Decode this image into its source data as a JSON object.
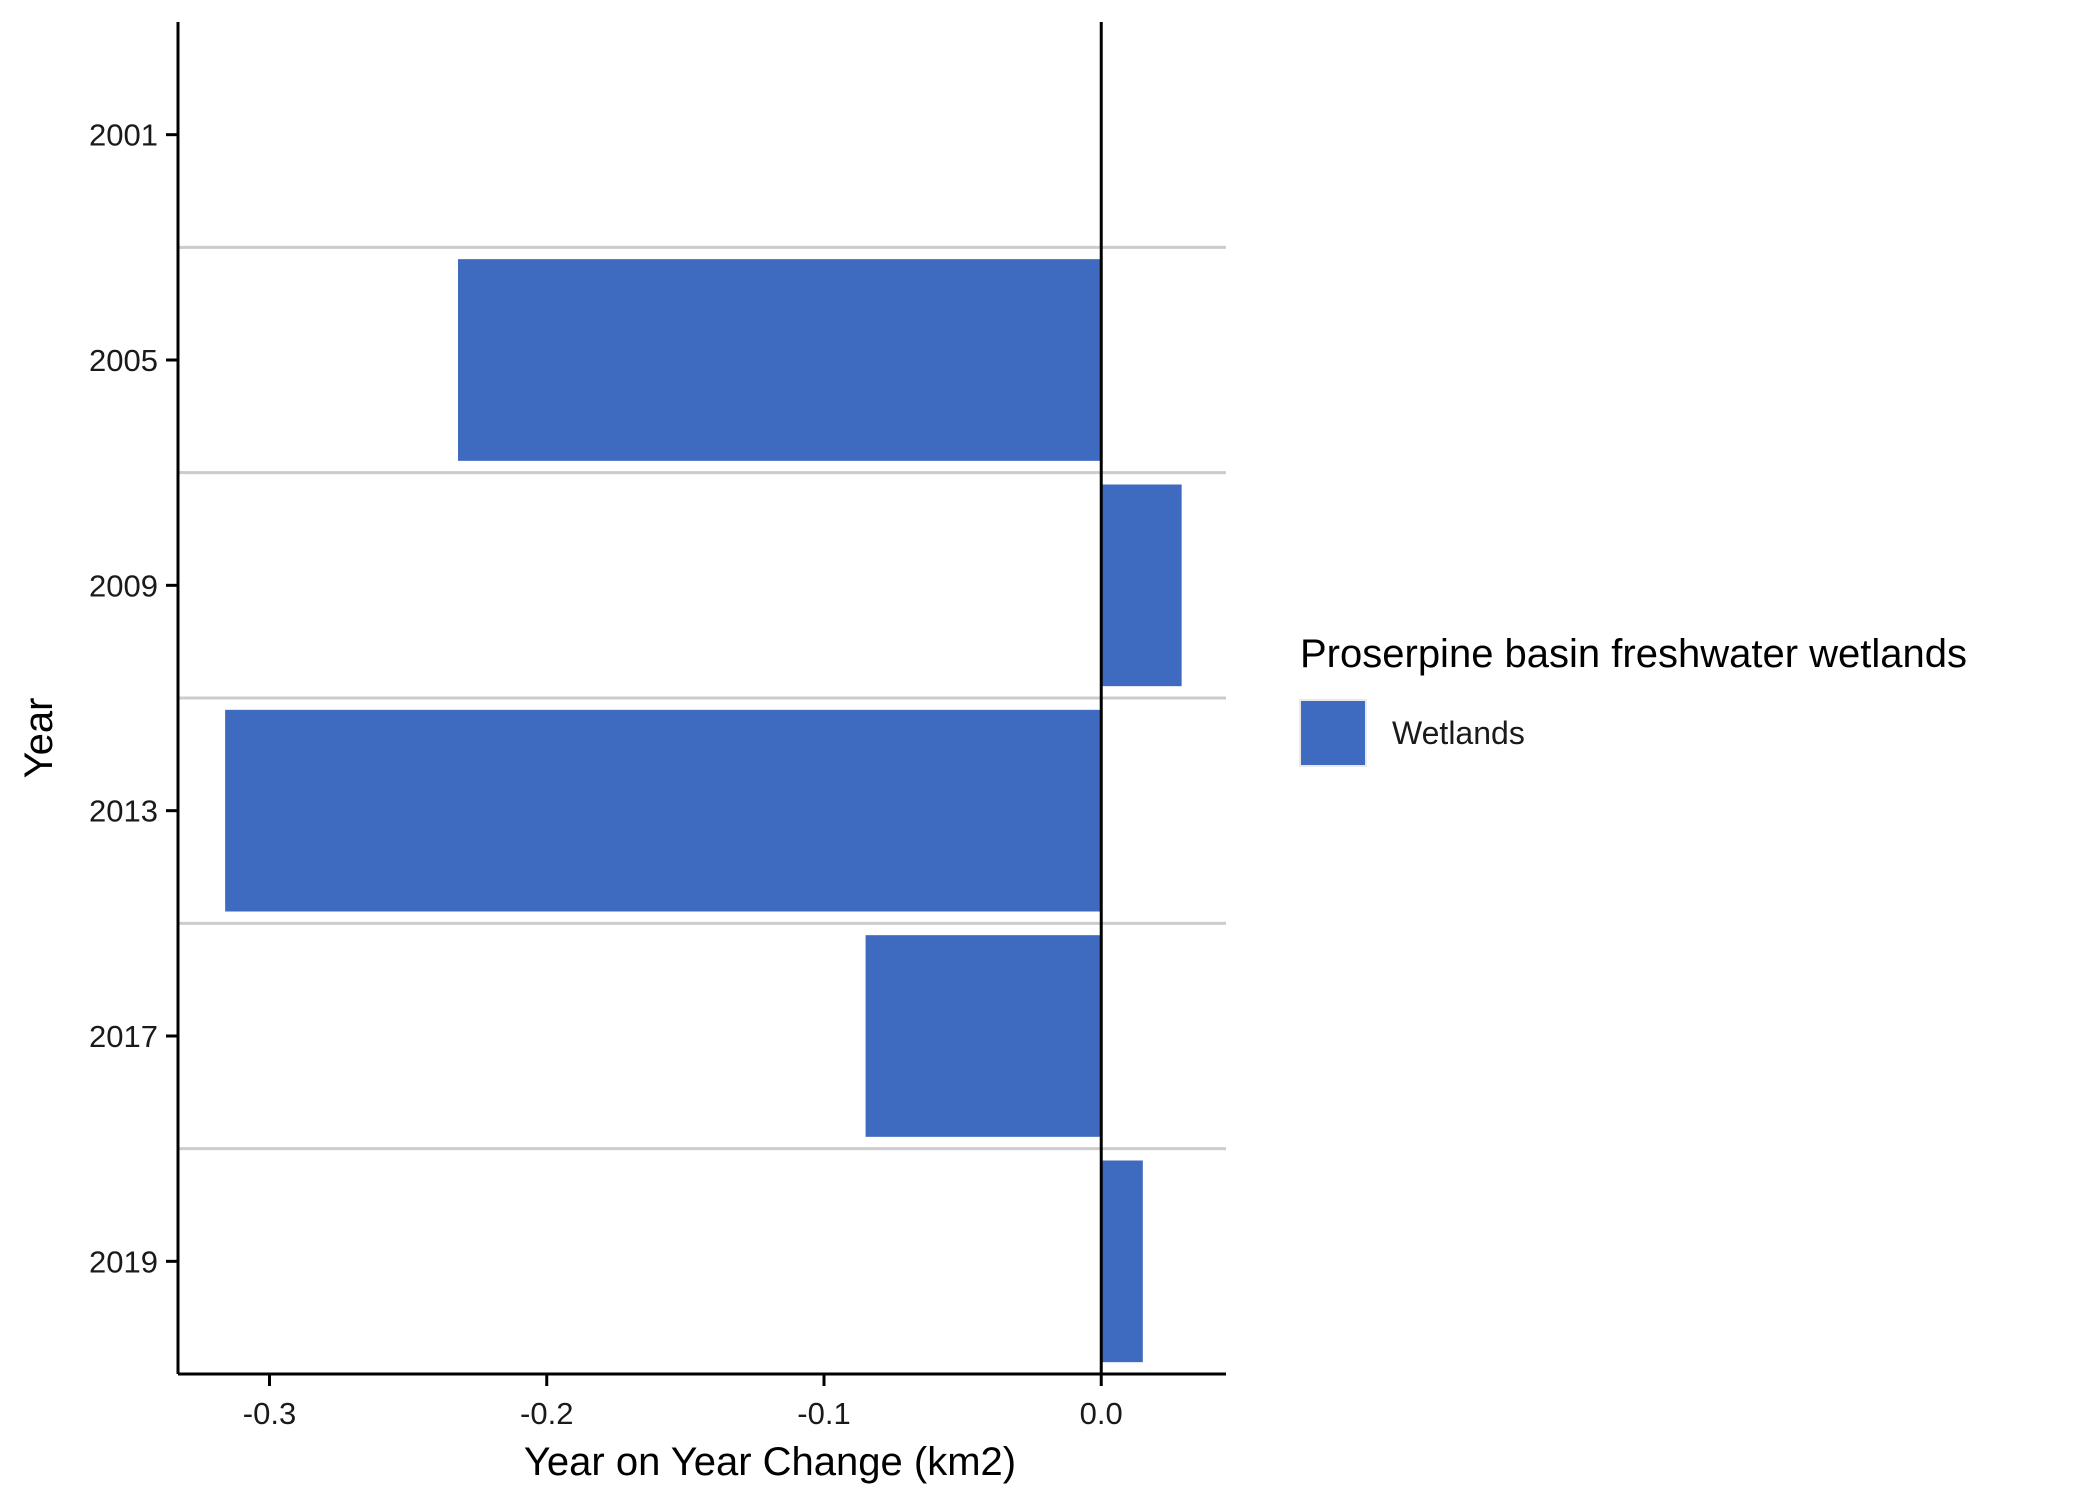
{
  "chart_data": {
    "type": "bar",
    "orientation": "horizontal",
    "categories": [
      "2001",
      "2005",
      "2009",
      "2013",
      "2017",
      "2019"
    ],
    "series": [
      {
        "name": "Wetlands",
        "values": [
          0,
          -0.232,
          0.029,
          -0.316,
          -0.085,
          0.015
        ]
      }
    ],
    "xlabel": "Year on Year Change (km2)",
    "ylabel": "Year",
    "xlim": [
      -0.333,
      0.045
    ],
    "xticks": [
      -0.3,
      -0.2,
      -0.1,
      0.0
    ],
    "xtick_labels": [
      "-0.3",
      "-0.2",
      "-0.1",
      "0.0"
    ],
    "legend": {
      "title": "Proserpine basin freshwater wetlands",
      "placement": "right",
      "entries": [
        "Wetlands"
      ]
    },
    "grid": "horizontal separators between categories",
    "colors": {
      "bar": "#3e6bbf",
      "separator": "#cccccc",
      "axis": "#000000"
    }
  }
}
